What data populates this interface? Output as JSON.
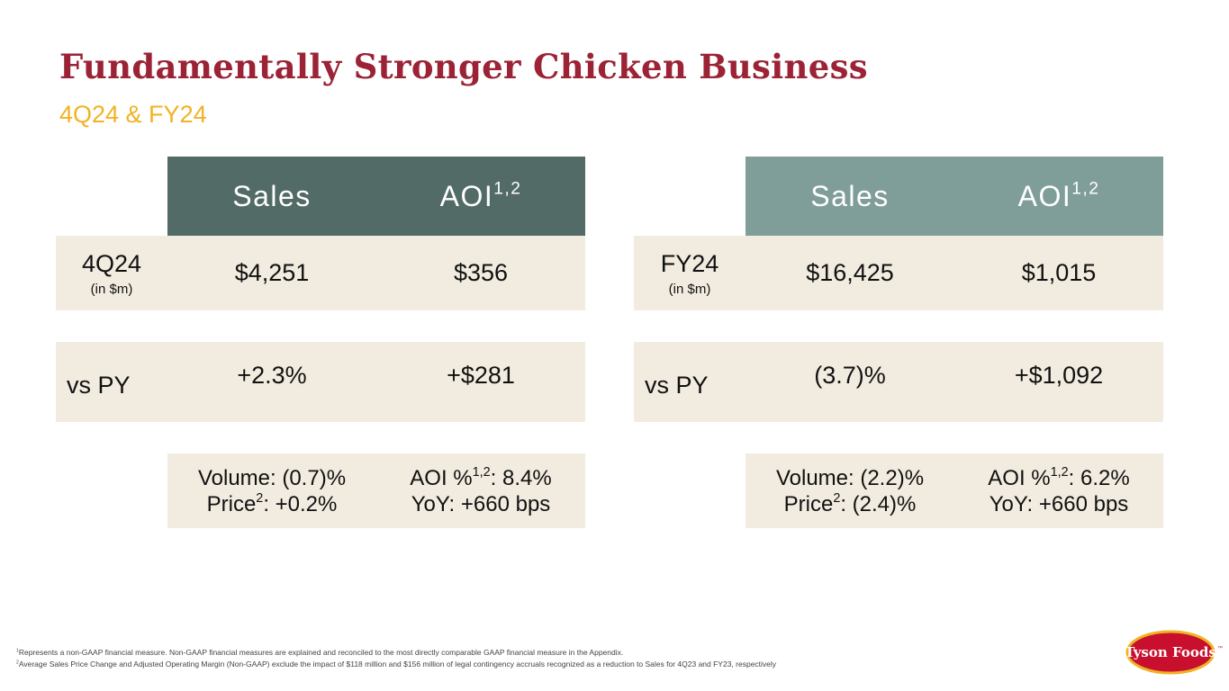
{
  "header": {
    "title": "Fundamentally Stronger Chicken Business",
    "subtitle": "4Q24 & FY24"
  },
  "tables": [
    {
      "columns": [
        {
          "text": "Sales"
        },
        {
          "text": "AOI",
          "sup": "1,2"
        }
      ],
      "rows": [
        {
          "label": "4Q24",
          "sublabel": "(in $m)",
          "cells": [
            "$4,251",
            "$356"
          ]
        },
        {
          "label": "vs PY",
          "cells": [
            "+2.3%",
            "+$281"
          ]
        }
      ],
      "details": [
        [
          {
            "text": "Volume: (0.7)%"
          },
          {
            "text": "Price",
            "sup": "2",
            "after": ": +0.2%"
          }
        ],
        [
          {
            "text": "AOI %",
            "sup": "1,2",
            "after": ": 8.4%"
          },
          {
            "text": "YoY: +660 bps"
          }
        ]
      ]
    },
    {
      "columns": [
        {
          "text": "Sales"
        },
        {
          "text": "AOI",
          "sup": "1,2"
        }
      ],
      "rows": [
        {
          "label": "FY24",
          "sublabel": "(in $m)",
          "cells": [
            "$16,425",
            "$1,015"
          ]
        },
        {
          "label": "vs PY",
          "cells": [
            "(3.7)%",
            "+$1,092"
          ]
        }
      ],
      "details": [
        [
          {
            "text": "Volume: (2.2)%"
          },
          {
            "text": "Price",
            "sup": "2",
            "after": ": (2.4)%"
          }
        ],
        [
          {
            "text": "AOI %",
            "sup": "1,2",
            "after": ": 6.2%"
          },
          {
            "text": "YoY: +660 bps"
          }
        ]
      ]
    }
  ],
  "footnotes": [
    {
      "mark": "1",
      "text": "Represents a non-GAAP financial measure. Non-GAAP financial measures are explained and reconciled to the most directly comparable GAAP financial measure in the Appendix."
    },
    {
      "mark": "2",
      "text": "Average Sales Price Change and Adjusted Operating Margin (Non-GAAP) exclude the impact of $118 million and $156 million of legal contingency accruals recognized as a reduction to Sales for 4Q23 and FY23, respectively"
    }
  ],
  "logo": {
    "text": "Tyson Foods",
    "mark": "™"
  }
}
